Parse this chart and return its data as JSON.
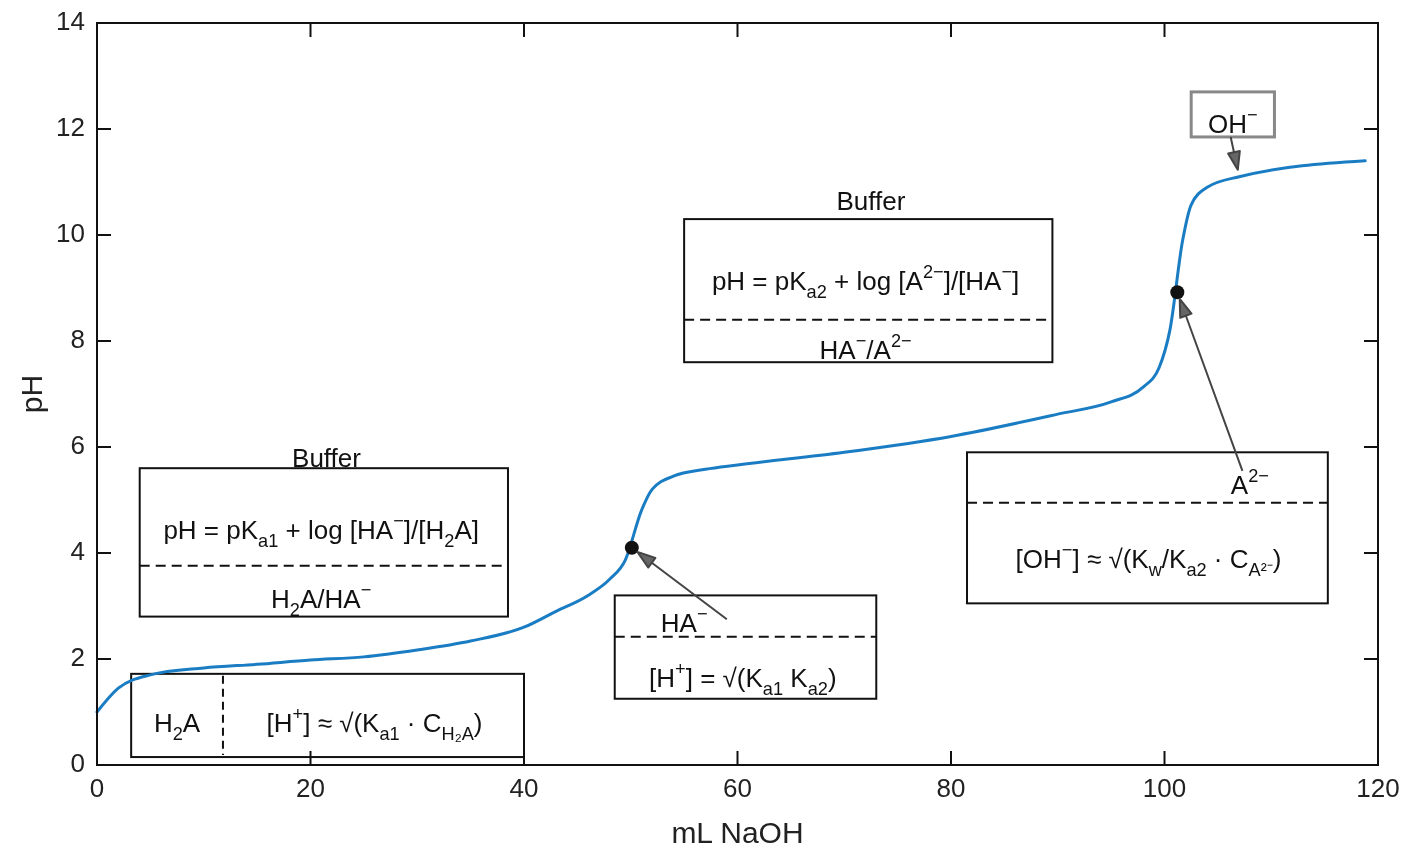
{
  "chart_data": {
    "type": "line",
    "xlabel": "mL NaOH",
    "ylabel": "pH",
    "xlim": [
      0,
      120
    ],
    "ylim": [
      0,
      14
    ],
    "xticks": [
      0,
      20,
      40,
      60,
      80,
      100,
      120
    ],
    "yticks": [
      0,
      2,
      4,
      6,
      8,
      10,
      12,
      14
    ],
    "grid": false,
    "series": [
      {
        "color": "#1a7dc4",
        "marker": "none",
        "line_style": "solid",
        "x": [
          0,
          2,
          5,
          10,
          15,
          20,
          25,
          30,
          35,
          40,
          43,
          46,
          48,
          49.5,
          51,
          52,
          54,
          57,
          60,
          70,
          80,
          90,
          95,
          98,
          99.5,
          100.5,
          101.7,
          102.5,
          104,
          107,
          118.8
        ],
        "values": [
          1.0,
          1.45,
          1.7,
          1.83,
          1.9,
          1.98,
          2.04,
          2.17,
          2.34,
          2.6,
          2.9,
          3.2,
          3.5,
          3.87,
          4.8,
          5.2,
          5.45,
          5.58,
          5.66,
          5.9,
          6.2,
          6.62,
          6.85,
          7.13,
          7.5,
          8.2,
          9.9,
          10.57,
          10.9,
          11.1,
          11.4
        ]
      },
      {
        "type": "scatter",
        "color": "#111111",
        "marker": "circle",
        "x": [
          50.1,
          101.2
        ],
        "values": [
          4.1,
          8.92
        ]
      }
    ],
    "annotations": [
      "Buffer",
      "pH = pK$_{a1}$ + log [HA$^{−}$]/[H$_{2}$A]",
      "H$_{2}$A/HA$^{−}$",
      "H$_{2}$A",
      "[H$^{+}$] ≈ √(K$_{a1}$ · C$_{H₂A}$)",
      {
        "text": "HA$^{−}$",
        "x": 50.1,
        "y": 4.1
      },
      "[H$^{+}$] = √(K$_{a1}$ K$_{a2}$)",
      "Buffer",
      "pH = pK$_{a2}$ + log [A$^{2−}$]/[HA$^{−}$]",
      "HA$^{−}$/A$^{2−}$",
      "A$^{2−}$",
      "[OH$^{−}$] ≈ √(K$_{w}$/K$_{a2}$ · C$_{A²⁻}$)",
      {
        "text": "OH$^{−}$",
        "x": 107,
        "y": 11.1
      }
    ]
  }
}
